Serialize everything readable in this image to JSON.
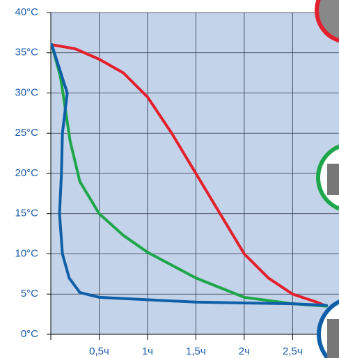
{
  "chart_data": {
    "type": "line",
    "ylim": [
      0,
      40
    ],
    "yticks": [
      {
        "value": 0,
        "label": "0°C"
      },
      {
        "value": 5,
        "label": "5°C"
      },
      {
        "value": 10,
        "label": "10°C"
      },
      {
        "value": 15,
        "label": "15°C"
      },
      {
        "value": 20,
        "label": "20°C"
      },
      {
        "value": 25,
        "label": "25°C"
      },
      {
        "value": 30,
        "label": "30°C"
      },
      {
        "value": 35,
        "label": "35°C"
      },
      {
        "value": 40,
        "label": "40°C"
      }
    ],
    "xlim": [
      0,
      2.98
    ],
    "xticks": [
      {
        "value": 0.5,
        "label": "0,5ч"
      },
      {
        "value": 1,
        "label": "1ч"
      },
      {
        "value": 1.5,
        "label": "1,5ч"
      },
      {
        "value": 2,
        "label": "2ч"
      },
      {
        "value": 2.5,
        "label": "2,5ч"
      }
    ],
    "grid": true,
    "series": [
      {
        "color": "#e3202b",
        "x": [
          0.01,
          0.25,
          0.5,
          0.75,
          1,
          1.25,
          1.5,
          1.75,
          2,
          2.25,
          2.5,
          2.75,
          2.85
        ],
        "values": [
          36,
          35.5,
          34.2,
          32.5,
          29.5,
          25,
          20,
          15,
          10,
          7,
          5,
          4,
          3.5
        ]
      },
      {
        "color": "#1fa64a",
        "x": [
          0.01,
          0.1,
          0.15,
          0.2,
          0.3,
          0.5,
          0.75,
          1,
          1.5,
          2,
          2.5,
          2.85
        ],
        "values": [
          36,
          32,
          28,
          24,
          19,
          15,
          12.3,
          10.2,
          7,
          4.6,
          3.8,
          3.5
        ]
      },
      {
        "color": "#0f5fa8",
        "x": [
          0.01,
          0.09,
          0.17,
          0.12,
          0.11,
          0.09,
          0.12,
          0.19,
          0.3,
          0.5,
          1,
          1.5,
          2,
          2.5,
          2.85
        ],
        "values": [
          36,
          33,
          30,
          25,
          20,
          15,
          10,
          7,
          5.2,
          4.6,
          4.3,
          4,
          3.9,
          3.8,
          3.6
        ]
      }
    ]
  }
}
